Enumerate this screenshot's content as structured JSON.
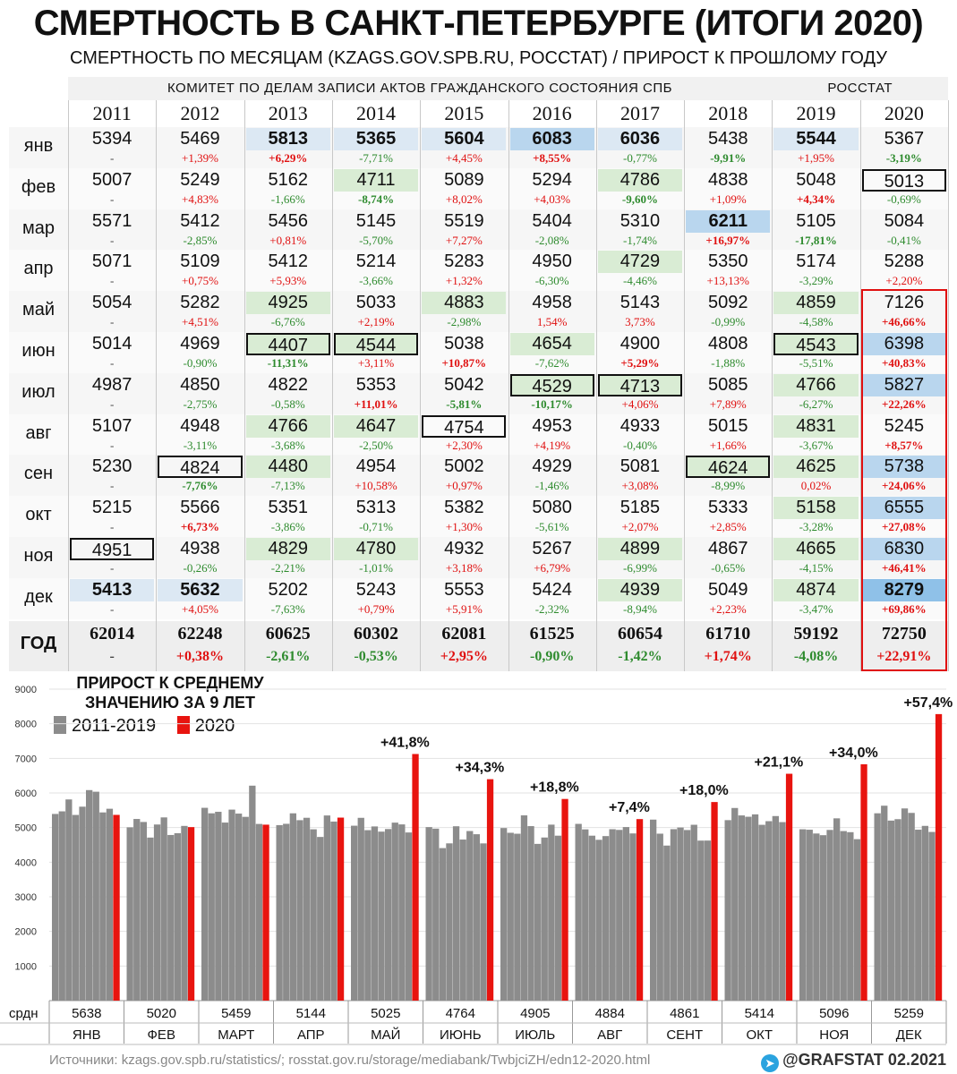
{
  "title": "СМЕРТНОСТЬ В САНКТ-ПЕТЕРБУРГЕ (ИТОГИ 2020)",
  "subtitle": "СМЕРТНОСТЬ ПО МЕСЯЦАМ (KZAGS.GOV.SPB.RU, РОССТАТ) / ПРИРОСТ К ПРОШЛОМУ ГОДУ",
  "table": {
    "band_kzags": "КОМИТЕТ ПО ДЕЛАМ ЗАПИСИ АКТОВ ГРАЖДАНСКОГО СОСТОЯНИЯ СПБ",
    "band_rosstat": "РОССТАТ",
    "years": [
      "2011",
      "2012",
      "2013",
      "2014",
      "2015",
      "2016",
      "2017",
      "2018",
      "2019",
      "2020"
    ],
    "total_label": "ГОД",
    "rows": [
      {
        "m": "янв",
        "v": [
          "5394",
          "5469",
          "5813",
          "5365",
          "5604",
          "6083",
          "6036",
          "5438",
          "5544",
          "5367"
        ],
        "p": [
          "-",
          "+1,39%",
          "+6,29%",
          "-7,71%",
          "+4,45%",
          "+8,55%",
          "-0,77%",
          "-9,91%",
          "+1,95%",
          "-3,19%"
        ]
      },
      {
        "m": "фев",
        "v": [
          "5007",
          "5249",
          "5162",
          "4711",
          "5089",
          "5294",
          "4786",
          "4838",
          "5048",
          "5013"
        ],
        "p": [
          "-",
          "+4,83%",
          "-1,66%",
          "-8,74%",
          "+8,02%",
          "+4,03%",
          "-9,60%",
          "+1,09%",
          "+4,34%",
          "-0,69%"
        ]
      },
      {
        "m": "мар",
        "v": [
          "5571",
          "5412",
          "5456",
          "5145",
          "5519",
          "5404",
          "5310",
          "6211",
          "5105",
          "5084"
        ],
        "p": [
          "-",
          "-2,85%",
          "+0,81%",
          "-5,70%",
          "+7,27%",
          "-2,08%",
          "-1,74%",
          "+16,97%",
          "-17,81%",
          "-0,41%"
        ]
      },
      {
        "m": "апр",
        "v": [
          "5071",
          "5109",
          "5412",
          "5214",
          "5283",
          "4950",
          "4729",
          "5350",
          "5174",
          "5288"
        ],
        "p": [
          "-",
          "+0,75%",
          "+5,93%",
          "-3,66%",
          "+1,32%",
          "-6,30%",
          "-4,46%",
          "+13,13%",
          "-3,29%",
          "+2,20%"
        ]
      },
      {
        "m": "май",
        "v": [
          "5054",
          "5282",
          "4925",
          "5033",
          "4883",
          "4958",
          "5143",
          "5092",
          "4859",
          "7126"
        ],
        "p": [
          "-",
          "+4,51%",
          "-6,76%",
          "+2,19%",
          "-2,98%",
          "1,54%",
          "3,73%",
          "-0,99%",
          "-4,58%",
          "+46,66%"
        ]
      },
      {
        "m": "июн",
        "v": [
          "5014",
          "4969",
          "4407",
          "4544",
          "5038",
          "4654",
          "4900",
          "4808",
          "4543",
          "6398"
        ],
        "p": [
          "-",
          "-0,90%",
          "-11,31%",
          "+3,11%",
          "+10,87%",
          "-7,62%",
          "+5,29%",
          "-1,88%",
          "-5,51%",
          "+40,83%"
        ]
      },
      {
        "m": "июл",
        "v": [
          "4987",
          "4850",
          "4822",
          "5353",
          "5042",
          "4529",
          "4713",
          "5085",
          "4766",
          "5827"
        ],
        "p": [
          "-",
          "-2,75%",
          "-0,58%",
          "+11,01%",
          "-5,81%",
          "-10,17%",
          "+4,06%",
          "+7,89%",
          "-6,27%",
          "+22,26%"
        ]
      },
      {
        "m": "авг",
        "v": [
          "5107",
          "4948",
          "4766",
          "4647",
          "4754",
          "4953",
          "4933",
          "5015",
          "4831",
          "5245"
        ],
        "p": [
          "-",
          "-3,11%",
          "-3,68%",
          "-2,50%",
          "+2,30%",
          "+4,19%",
          "-0,40%",
          "+1,66%",
          "-3,67%",
          "+8,57%"
        ]
      },
      {
        "m": "сен",
        "v": [
          "5230",
          "4824",
          "4480",
          "4954",
          "5002",
          "4929",
          "5081",
          "4624",
          "4625",
          "5738"
        ],
        "p": [
          "-",
          "-7,76%",
          "-7,13%",
          "+10,58%",
          "+0,97%",
          "-1,46%",
          "+3,08%",
          "-8,99%",
          "0,02%",
          "+24,06%"
        ]
      },
      {
        "m": "окт",
        "v": [
          "5215",
          "5566",
          "5351",
          "5313",
          "5382",
          "5080",
          "5185",
          "5333",
          "5158",
          "6555"
        ],
        "p": [
          "-",
          "+6,73%",
          "-3,86%",
          "-0,71%",
          "+1,30%",
          "-5,61%",
          "+2,07%",
          "+2,85%",
          "-3,28%",
          "+27,08%"
        ]
      },
      {
        "m": "ноя",
        "v": [
          "4951",
          "4938",
          "4829",
          "4780",
          "4932",
          "5267",
          "4899",
          "4867",
          "4665",
          "6830"
        ],
        "p": [
          "-",
          "-0,26%",
          "-2,21%",
          "-1,01%",
          "+3,18%",
          "+6,79%",
          "-6,99%",
          "-0,65%",
          "-4,15%",
          "+46,41%"
        ]
      },
      {
        "m": "дек",
        "v": [
          "5413",
          "5632",
          "5202",
          "5243",
          "5553",
          "5424",
          "4939",
          "5049",
          "4874",
          "8279"
        ],
        "p": [
          "-",
          "+4,05%",
          "-7,63%",
          "+0,79%",
          "+5,91%",
          "-2,32%",
          "-8,94%",
          "+2,23%",
          "-3,47%",
          "+69,86%"
        ]
      }
    ],
    "totals": [
      "62014",
      "62248",
      "60625",
      "60302",
      "62081",
      "61525",
      "60654",
      "61710",
      "59192",
      "72750"
    ],
    "total_pcts": [
      "-",
      "+0,38%",
      "-2,61%",
      "-0,53%",
      "+2,95%",
      "-0,90%",
      "-1,42%",
      "+1,74%",
      "-4,08%",
      "+22,91%"
    ],
    "colors": {
      "green": "#d9ecd4",
      "blue": "#dce8f3",
      "blue_mid": "#b9d6ee",
      "blue_dark": "#8fc1e8",
      "stripe": "#ededed",
      "red": "#e01010",
      "pos": "#e01010",
      "neg": "#2e8b2e"
    }
  },
  "chart_data": {
    "type": "bar",
    "title": "ПРИРОСТ К СРЕДНЕМУ ЗНАЧЕНИЮ ЗА 9 ЛЕТ",
    "legend": [
      {
        "name": "2011-2019",
        "color": "#8c8c8c"
      },
      {
        "name": "2020",
        "color": "#e8140f"
      }
    ],
    "yticks": [
      1000,
      2000,
      3000,
      4000,
      5000,
      6000,
      7000,
      8000,
      9000
    ],
    "ylim": [
      0,
      9000
    ],
    "row_label": "срдн",
    "categories": [
      "ЯНВ",
      "ФЕВ",
      "МАРТ",
      "АПР",
      "МАЙ",
      "ИЮНЬ",
      "ИЮЛЬ",
      "АВГ",
      "СЕНТ",
      "ОКТ",
      "НОЯ",
      "ДЕК"
    ],
    "averages": [
      "5638",
      "5020",
      "5459",
      "5144",
      "5025",
      "4764",
      "4905",
      "4884",
      "4861",
      "5414",
      "5096",
      "5259"
    ],
    "increase_labels": [
      "",
      "",
      "",
      "",
      "+41,8%",
      "+34,3%",
      "+18,8%",
      "+7,4%",
      "+18,0%",
      "+21,1%",
      "+34,0%",
      "+57,4%"
    ],
    "series": [
      {
        "name": "2011-2019",
        "values": [
          [
            5394,
            5469,
            5813,
            5365,
            5604,
            6083,
            6036,
            5438,
            5544
          ],
          [
            5007,
            5249,
            5162,
            4711,
            5089,
            5294,
            4786,
            4838,
            5048
          ],
          [
            5571,
            5412,
            5456,
            5145,
            5519,
            5404,
            5310,
            6211,
            5105
          ],
          [
            5071,
            5109,
            5412,
            5214,
            5283,
            4950,
            4729,
            5350,
            5174
          ],
          [
            5054,
            5282,
            4925,
            5033,
            4883,
            4958,
            5143,
            5092,
            4859
          ],
          [
            5014,
            4969,
            4407,
            4544,
            5038,
            4654,
            4900,
            4808,
            4543
          ],
          [
            4987,
            4850,
            4822,
            5353,
            5042,
            4529,
            4713,
            5085,
            4766
          ],
          [
            5107,
            4948,
            4766,
            4647,
            4754,
            4953,
            4933,
            5015,
            4831
          ],
          [
            5230,
            4824,
            4480,
            4954,
            5002,
            4929,
            5081,
            4624,
            4625
          ],
          [
            5215,
            5566,
            5351,
            5313,
            5382,
            5080,
            5185,
            5333,
            5158
          ],
          [
            4951,
            4938,
            4829,
            4780,
            4932,
            5267,
            4899,
            4867,
            4665
          ],
          [
            5413,
            5632,
            5202,
            5243,
            5553,
            5424,
            4939,
            5049,
            4874
          ]
        ]
      },
      {
        "name": "2020",
        "values": [
          5367,
          5013,
          5084,
          5288,
          7126,
          6398,
          5827,
          5245,
          5738,
          6555,
          6830,
          8279
        ]
      }
    ]
  },
  "footer": {
    "sources": "Источники: kzags.gov.spb.ru/statistics/; rosstat.gov.ru/storage/mediabank/TwbjciZH/edn12-2020.html",
    "credit": "@GRAFSTAT 02.2021",
    "icon": "telegram-icon"
  }
}
